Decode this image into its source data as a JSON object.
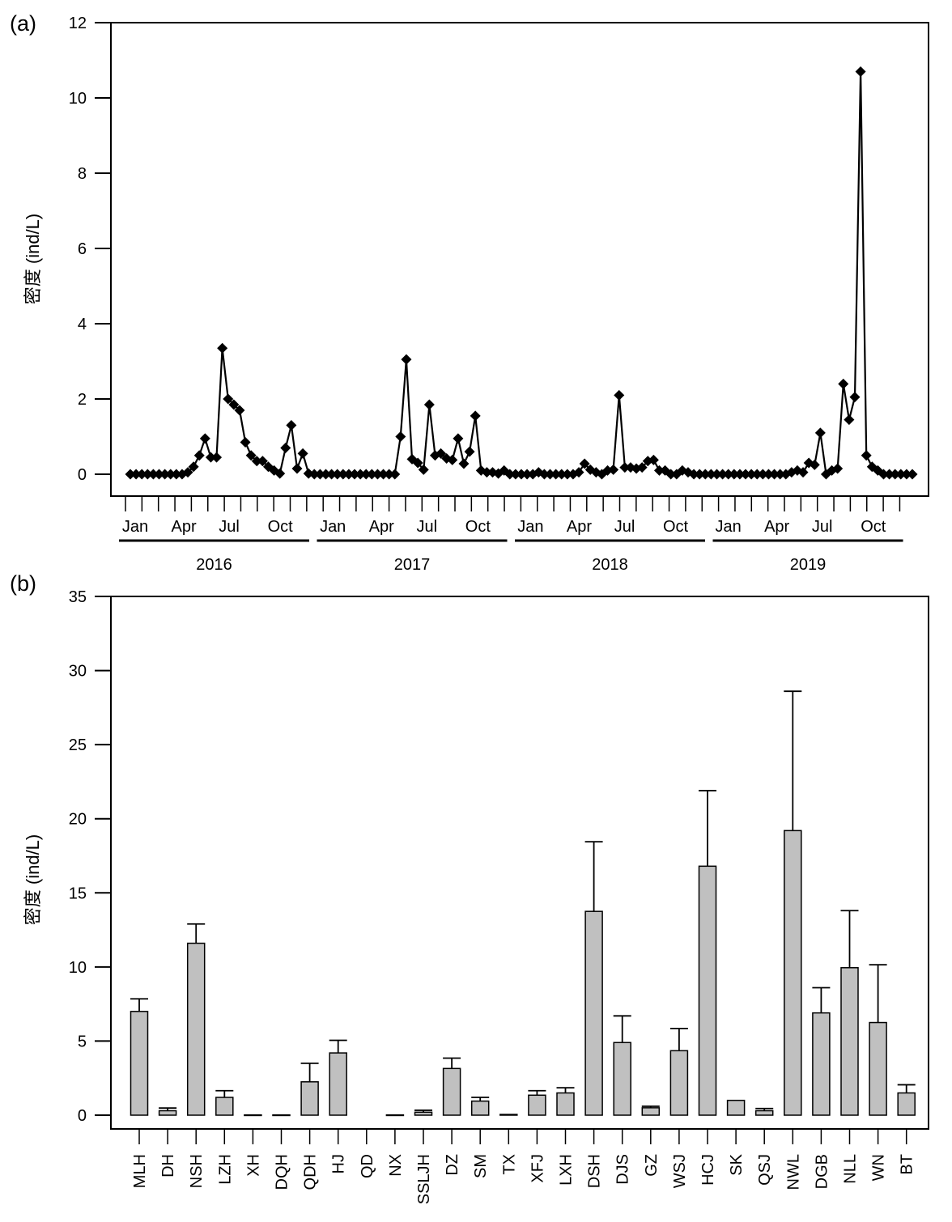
{
  "chart_data": [
    {
      "type": "line",
      "panel_label": "(a)",
      "ylabel": "密度 (ind/L)",
      "ylim": [
        0,
        12
      ],
      "yticks": [
        "0",
        "2",
        "4",
        "6",
        "8",
        "10",
        "12"
      ],
      "month_labels": [
        "Jan",
        "Apr",
        "Jul",
        "Oct"
      ],
      "years": [
        "2016",
        "2017",
        "2018",
        "2019"
      ],
      "months_total": 48,
      "marker": "diamond",
      "color": "#000000",
      "series": [
        {
          "name": "密度",
          "values": [
            0,
            0,
            0,
            0,
            0,
            0,
            0,
            0,
            0,
            0,
            0.05,
            0.2,
            0.5,
            0.95,
            0.45,
            0.45,
            3.35,
            2.0,
            1.85,
            1.7,
            0.85,
            0.5,
            0.35,
            0.35,
            0.2,
            0.1,
            0.02,
            0.7,
            1.3,
            0.15,
            0.55,
            0.02,
            0,
            0,
            0,
            0,
            0,
            0,
            0,
            0,
            0,
            0,
            0,
            0,
            0,
            0,
            0,
            1.0,
            3.05,
            0.4,
            0.3,
            0.12,
            1.85,
            0.5,
            0.55,
            0.42,
            0.38,
            0.95,
            0.28,
            0.6,
            1.55,
            0.1,
            0.05,
            0.05,
            0.02,
            0.1,
            0,
            0,
            0,
            0,
            0,
            0.05,
            0,
            0,
            0,
            0,
            0,
            0,
            0.05,
            0.28,
            0.12,
            0.05,
            0,
            0.1,
            0.12,
            2.1,
            0.18,
            0.18,
            0.15,
            0.18,
            0.35,
            0.38,
            0.1,
            0.1,
            0,
            0,
            0.1,
            0.05,
            0,
            0,
            0,
            0,
            0,
            0,
            0,
            0,
            0,
            0,
            0,
            0,
            0,
            0,
            0,
            0,
            0,
            0.05,
            0.1,
            0.05,
            0.3,
            0.25,
            1.1,
            0,
            0.1,
            0.15,
            2.4,
            1.45,
            2.05,
            10.7,
            0.5,
            0.2,
            0.1,
            0,
            0,
            0,
            0,
            0,
            0
          ]
        }
      ]
    },
    {
      "type": "bar",
      "panel_label": "(b)",
      "ylabel": "密度 (ind/L)",
      "ylim": [
        0,
        35
      ],
      "yticks": [
        "0",
        "5",
        "10",
        "15",
        "20",
        "25",
        "30",
        "35"
      ],
      "bar_color": "#c0c0c0",
      "categories": [
        "MLH",
        "DH",
        "NSH",
        "LZH",
        "XH",
        "DQH",
        "QDH",
        "HJ",
        "QD",
        "NX",
        "SSLJH",
        "DZ",
        "SM",
        "TX",
        "XFJ",
        "LXH",
        "DSH",
        "DJS",
        "GZ",
        "WSJ",
        "HCJ",
        "SK",
        "QSJ",
        "NWL",
        "DGB",
        "NLL",
        "WN",
        "BT"
      ],
      "values": [
        7.0,
        0.3,
        11.6,
        1.2,
        0.02,
        0.02,
        2.25,
        4.2,
        0,
        0.02,
        0.2,
        3.15,
        0.95,
        0.05,
        1.35,
        1.5,
        13.75,
        4.9,
        0.5,
        4.35,
        16.8,
        1.0,
        0.3,
        19.2,
        6.9,
        9.95,
        6.25,
        1.5
      ],
      "errors_upper": [
        7.85,
        0.48,
        12.9,
        1.65,
        0.02,
        0.02,
        3.5,
        5.05,
        0,
        0.02,
        0.33,
        3.85,
        1.2,
        0.08,
        1.65,
        1.85,
        18.45,
        6.7,
        0.6,
        5.85,
        21.9,
        1.0,
        0.45,
        28.6,
        8.6,
        13.8,
        10.15,
        2.05
      ]
    }
  ]
}
